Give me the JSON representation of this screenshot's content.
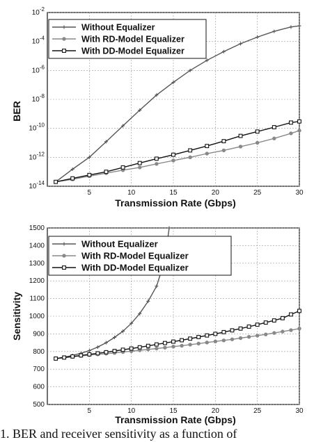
{
  "caption": "1. BER and receiver sensitivity as a function of",
  "colors": {
    "without": "#555555",
    "rd": "#888888",
    "dd": "#111111"
  },
  "chart_data": [
    {
      "type": "line",
      "xlabel": "Transmission Rate (Gbps)",
      "ylabel": "BER",
      "xlim": [
        0,
        30
      ],
      "ylim": [
        1e-14,
        0.01
      ],
      "log_y": true,
      "grid": true,
      "legend_position": "top-left",
      "x_ticks": [
        "5",
        "10",
        "15",
        "20",
        "25",
        "30"
      ],
      "y_ticks": [
        {
          "base": "10",
          "exp": "-14"
        },
        {
          "base": "10",
          "exp": "-12"
        },
        {
          "base": "10",
          "exp": "-10"
        },
        {
          "base": "10",
          "exp": "-8"
        },
        {
          "base": "10",
          "exp": "-6"
        },
        {
          "base": "10",
          "exp": "-4"
        },
        {
          "base": "10",
          "exp": "-2"
        }
      ],
      "series": [
        {
          "name": "Without Equalizer",
          "marker": "plus",
          "x": [
            1,
            3,
            5,
            7,
            9,
            11,
            13,
            15,
            17,
            19,
            21,
            23,
            25,
            27,
            29,
            30
          ],
          "y": [
            2e-14,
            1.5e-13,
            1e-12,
            1.2e-11,
            1.5e-10,
            1.8e-09,
            2e-08,
            1.5e-07,
            1e-06,
            5e-06,
            2e-05,
            7e-05,
            0.0002,
            0.0005,
            0.001,
            0.0012
          ]
        },
        {
          "name": "With RD-Model Equalizer",
          "marker": "circle",
          "x": [
            1,
            3,
            5,
            7,
            9,
            11,
            13,
            15,
            17,
            19,
            21,
            23,
            25,
            27,
            29,
            30
          ],
          "y": [
            2e-14,
            3e-14,
            5e-14,
            8e-14,
            1.3e-13,
            2e-13,
            3.5e-13,
            6e-13,
            1e-12,
            1.8e-12,
            3e-12,
            5.5e-12,
            1e-11,
            2e-11,
            4.5e-11,
            7e-11
          ]
        },
        {
          "name": "With DD-Model Equalizer",
          "marker": "square",
          "x": [
            1,
            3,
            5,
            7,
            9,
            11,
            13,
            15,
            17,
            19,
            21,
            23,
            25,
            27,
            29,
            30
          ],
          "y": [
            2e-14,
            3.5e-14,
            6e-14,
            1e-13,
            2e-13,
            4e-13,
            8e-13,
            1.5e-12,
            3e-12,
            6e-12,
            1.3e-11,
            3e-11,
            6e-11,
            1.2e-10,
            2.5e-10,
            3e-10
          ]
        }
      ]
    },
    {
      "type": "line",
      "xlabel": "Transmission Rate (Gbps)",
      "ylabel": "Sensitivity",
      "xlim": [
        0,
        30
      ],
      "ylim": [
        500,
        1500
      ],
      "grid": true,
      "legend_position": "top-left",
      "x_ticks": [
        "5",
        "10",
        "15",
        "20",
        "25",
        "30"
      ],
      "y_ticks": [
        "500",
        "600",
        "700",
        "800",
        "900",
        "1000",
        "1100",
        "1200",
        "1300",
        "1400",
        "1500"
      ],
      "series": [
        {
          "name": "Without Equalizer",
          "marker": "plus",
          "x": [
            1,
            2,
            3,
            4,
            5,
            6,
            7,
            8,
            9,
            10,
            11,
            12,
            13,
            14,
            14.5
          ],
          "y": [
            760,
            768,
            778,
            790,
            805,
            825,
            850,
            880,
            915,
            960,
            1015,
            1085,
            1170,
            1320,
            1500
          ]
        },
        {
          "name": "With RD-Model Equalizer",
          "marker": "circle",
          "x": [
            1,
            2,
            3,
            4,
            5,
            6,
            7,
            8,
            9,
            10,
            11,
            12,
            13,
            14,
            15,
            16,
            17,
            18,
            19,
            20,
            21,
            22,
            23,
            24,
            25,
            26,
            27,
            28,
            29,
            30
          ],
          "y": [
            760,
            765,
            770,
            775,
            780,
            784,
            788,
            792,
            797,
            802,
            807,
            812,
            817,
            822,
            828,
            833,
            839,
            845,
            851,
            857,
            863,
            869,
            876,
            883,
            890,
            897,
            905,
            913,
            921,
            930
          ]
        },
        {
          "name": "With DD-Model Equalizer",
          "marker": "square",
          "x": [
            1,
            2,
            3,
            4,
            5,
            6,
            7,
            8,
            9,
            10,
            11,
            12,
            13,
            14,
            15,
            16,
            17,
            18,
            19,
            20,
            21,
            22,
            23,
            24,
            25,
            26,
            27,
            28,
            29,
            30
          ],
          "y": [
            760,
            766,
            772,
            778,
            784,
            790,
            796,
            803,
            810,
            817,
            824,
            832,
            840,
            848,
            856,
            864,
            873,
            882,
            891,
            900,
            910,
            920,
            930,
            941,
            952,
            964,
            976,
            989,
            1010,
            1030
          ]
        }
      ]
    }
  ]
}
